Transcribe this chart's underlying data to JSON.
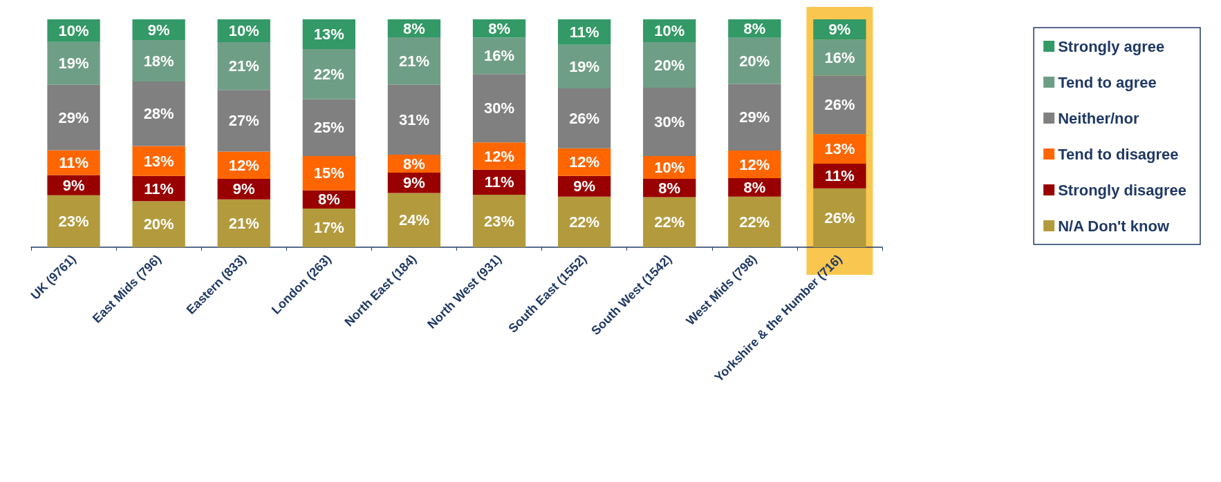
{
  "chart_data": {
    "type": "bar",
    "stacked": true,
    "tick_labels": "x",
    "legend": "right",
    "grid": false,
    "categories": [
      "UK (9761)",
      "East Mids (796)",
      "Eastern (833)",
      "London (263)",
      "North East (184)",
      "North West (931)",
      "South East (1552)",
      "South West (1542)",
      "West Mids (798)",
      "Yorkshire & the Humber (716)"
    ],
    "bands": [
      {
        "axis": "x",
        "from": "Yorkshire & the Humber (716)",
        "to": "Yorkshire & the Humber (716)",
        "color": "#f9c74f"
      }
    ],
    "series": [
      {
        "name": "N/A Don't know",
        "color": "#b39a3c",
        "values": [
          22.8,
          20.2,
          21,
          17,
          23.8,
          23,
          22.2,
          22,
          22.2,
          25.8
        ],
        "value_labels": [
          "23%",
          "20%",
          "21%",
          "17%",
          "24%",
          "23%",
          "22%",
          "22%",
          "22%",
          "26%"
        ]
      },
      {
        "name": "Strongly disagree",
        "color": "#990000",
        "values": [
          8.9,
          11.1,
          9,
          8,
          8.9,
          11,
          9.1,
          8,
          8.1,
          10.9
        ],
        "value_labels": [
          "9%",
          "11%",
          "9%",
          "8%",
          "9%",
          "11%",
          "9%",
          "8%",
          "8%",
          "11%"
        ]
      },
      {
        "name": "Tend to disagree",
        "color": "#ff6600",
        "values": [
          10.9,
          13.1,
          12,
          15,
          7.9,
          12,
          12.1,
          10,
          12.1,
          12.9
        ],
        "value_labels": [
          "11%",
          "13%",
          "12%",
          "15%",
          "8%",
          "12%",
          "12%",
          "10%",
          "12%",
          "13%"
        ]
      },
      {
        "name": "Neither/nor",
        "color": "#808080",
        "values": [
          28.7,
          28.3,
          27,
          25,
          30.7,
          30,
          26.3,
          30,
          29.3,
          25.7
        ],
        "value_labels": [
          "29%",
          "28%",
          "27%",
          "25%",
          "31%",
          "30%",
          "26%",
          "30%",
          "29%",
          "26%"
        ]
      },
      {
        "name": "Tend to agree",
        "color": "#6f9e86",
        "values": [
          18.8,
          18.2,
          21,
          22,
          20.8,
          16,
          19.2,
          20,
          20.2,
          15.8
        ],
        "value_labels": [
          "19%",
          "18%",
          "21%",
          "22%",
          "21%",
          "16%",
          "19%",
          "20%",
          "20%",
          "16%"
        ]
      },
      {
        "name": "Strongly agree",
        "color": "#339966",
        "values": [
          9.9,
          9.1,
          10,
          13,
          7.9,
          8,
          11.1,
          10,
          8.1,
          8.9
        ],
        "value_labels": [
          "10%",
          "9%",
          "10%",
          "13%",
          "8%",
          "8%",
          "11%",
          "10%",
          "8%",
          "9%"
        ]
      }
    ]
  }
}
